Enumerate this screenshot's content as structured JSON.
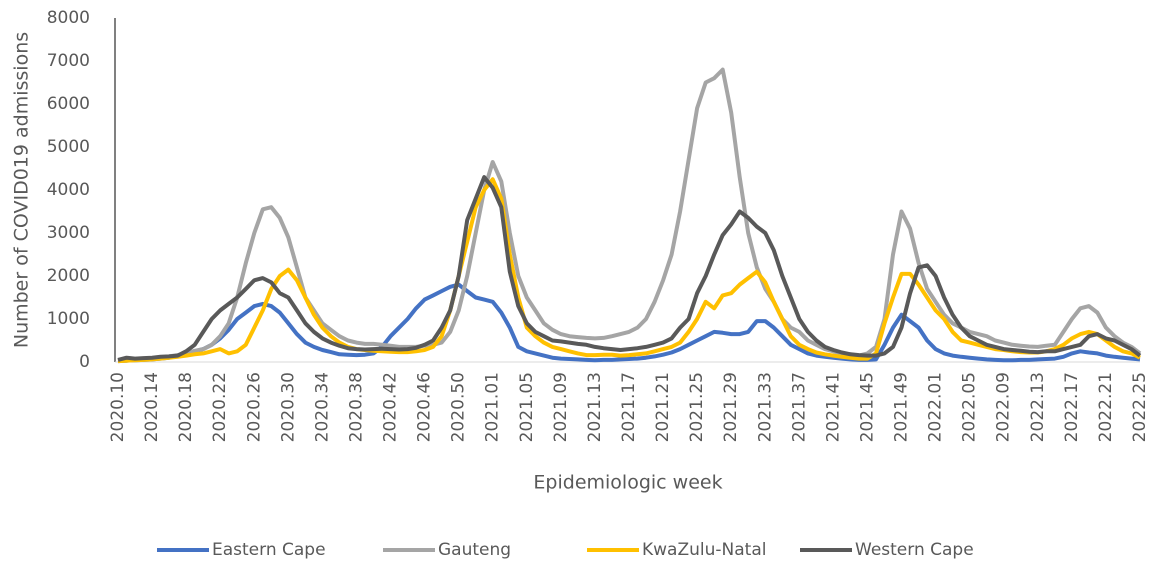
{
  "chart_data": {
    "type": "line",
    "y_label": "Number of COVID019 admissions",
    "x_label": "Epidemiologic week",
    "categories": [
      "2020.10",
      null,
      null,
      null,
      "2020.14",
      null,
      null,
      null,
      "2020.18",
      null,
      null,
      null,
      "2020.22",
      null,
      null,
      null,
      "2020.26",
      null,
      null,
      null,
      "2020.30",
      null,
      null,
      null,
      "2020.34",
      null,
      null,
      null,
      "2020.38",
      null,
      null,
      null,
      "2020.42",
      null,
      null,
      null,
      "2020.46",
      null,
      null,
      null,
      "2020.50",
      null,
      null,
      null,
      "2021.01",
      null,
      null,
      null,
      "2021.05",
      null,
      null,
      null,
      "2021.09",
      null,
      null,
      null,
      "2021.13",
      null,
      null,
      null,
      "2021.17",
      null,
      null,
      null,
      "2021.21",
      null,
      null,
      null,
      "2021.25",
      null,
      null,
      null,
      "2021.29",
      null,
      null,
      null,
      "2021.33",
      null,
      null,
      null,
      "2021.37",
      null,
      null,
      null,
      "2021.41",
      null,
      null,
      null,
      "2021.45",
      null,
      null,
      null,
      "2021.49",
      null,
      null,
      null,
      "2022.01",
      null,
      null,
      null,
      "2022.05",
      null,
      null,
      null,
      "2022.09",
      null,
      null,
      null,
      "2022.13",
      null,
      null,
      null,
      "2022.17",
      null,
      null,
      null,
      "2022.21",
      null,
      null,
      null,
      "2022.25"
    ],
    "series": [
      {
        "name": "Eastern Cape",
        "color": "#4472c4",
        "values": [
          20,
          30,
          40,
          50,
          60,
          80,
          100,
          150,
          200,
          250,
          300,
          400,
          550,
          750,
          1000,
          1150,
          1300,
          1350,
          1300,
          1150,
          900,
          650,
          450,
          350,
          280,
          230,
          180,
          170,
          160,
          170,
          200,
          350,
          600,
          800,
          1000,
          1250,
          1450,
          1550,
          1650,
          1750,
          1800,
          1650,
          1500,
          1450,
          1400,
          1150,
          800,
          350,
          250,
          200,
          150,
          100,
          80,
          70,
          60,
          50,
          40,
          50,
          50,
          60,
          70,
          80,
          100,
          130,
          170,
          220,
          300,
          400,
          500,
          600,
          700,
          680,
          650,
          650,
          700,
          950,
          950,
          800,
          600,
          400,
          300,
          200,
          150,
          120,
          100,
          80,
          60,
          50,
          50,
          60,
          400,
          800,
          1100,
          950,
          800,
          500,
          300,
          200,
          150,
          120,
          100,
          80,
          60,
          50,
          40,
          40,
          50,
          50,
          60,
          70,
          80,
          120,
          200,
          250,
          220,
          200,
          150,
          120,
          100,
          80,
          60
        ]
      },
      {
        "name": "Gauteng",
        "color": "#a5a5a5",
        "values": [
          30,
          50,
          40,
          60,
          80,
          100,
          130,
          160,
          200,
          260,
          300,
          400,
          600,
          900,
          1500,
          2300,
          3000,
          3550,
          3600,
          3350,
          2900,
          2200,
          1500,
          1200,
          900,
          750,
          600,
          500,
          450,
          420,
          420,
          400,
          380,
          350,
          350,
          350,
          380,
          400,
          450,
          700,
          1200,
          2000,
          3000,
          4000,
          4650,
          4200,
          3000,
          2000,
          1500,
          1200,
          900,
          750,
          650,
          600,
          580,
          560,
          550,
          560,
          600,
          650,
          700,
          800,
          1000,
          1400,
          1900,
          2500,
          3500,
          4700,
          5900,
          6500,
          6600,
          6800,
          5800,
          4300,
          3000,
          2200,
          1700,
          1400,
          1000,
          800,
          700,
          500,
          400,
          300,
          250,
          200,
          180,
          150,
          200,
          350,
          1000,
          2500,
          3500,
          3100,
          2300,
          1700,
          1400,
          1100,
          900,
          800,
          700,
          650,
          600,
          500,
          450,
          400,
          380,
          360,
          350,
          380,
          400,
          700,
          1000,
          1250,
          1300,
          1150,
          800,
          600,
          450,
          350,
          200
        ]
      },
      {
        "name": "KwaZulu-Natal",
        "color": "#ffc000",
        "values": [
          20,
          30,
          40,
          50,
          60,
          80,
          100,
          120,
          150,
          180,
          200,
          250,
          300,
          200,
          250,
          400,
          800,
          1200,
          1700,
          2000,
          2150,
          1900,
          1500,
          1100,
          800,
          600,
          450,
          350,
          300,
          280,
          260,
          250,
          240,
          230,
          230,
          250,
          280,
          350,
          600,
          1200,
          2000,
          2800,
          3600,
          4000,
          4250,
          3800,
          2500,
          1500,
          800,
          600,
          450,
          350,
          300,
          250,
          200,
          160,
          160,
          170,
          170,
          150,
          160,
          180,
          200,
          250,
          300,
          350,
          450,
          700,
          1000,
          1400,
          1250,
          1550,
          1600,
          1800,
          1950,
          2100,
          1850,
          1400,
          1000,
          600,
          400,
          300,
          220,
          180,
          150,
          120,
          100,
          80,
          80,
          200,
          900,
          1500,
          2050,
          2050,
          1800,
          1500,
          1200,
          1000,
          700,
          500,
          450,
          400,
          350,
          300,
          280,
          250,
          230,
          220,
          220,
          250,
          300,
          400,
          550,
          650,
          700,
          650,
          500,
          350,
          250,
          200,
          100
        ]
      },
      {
        "name": "Western Cape",
        "color": "#595959",
        "values": [
          50,
          100,
          80,
          90,
          100,
          120,
          130,
          150,
          250,
          400,
          700,
          1000,
          1200,
          1350,
          1500,
          1700,
          1900,
          1950,
          1850,
          1600,
          1500,
          1200,
          900,
          700,
          550,
          450,
          380,
          320,
          300,
          290,
          300,
          310,
          300,
          290,
          300,
          330,
          400,
          500,
          800,
          1200,
          2000,
          3300,
          3800,
          4300,
          4050,
          3600,
          2100,
          1300,
          900,
          700,
          600,
          500,
          480,
          450,
          420,
          400,
          350,
          320,
          300,
          280,
          300,
          320,
          350,
          400,
          450,
          550,
          800,
          1000,
          1600,
          2000,
          2500,
          2950,
          3200,
          3500,
          3350,
          3150,
          3000,
          2600,
          2000,
          1500,
          1000,
          700,
          500,
          350,
          280,
          220,
          180,
          160,
          150,
          150,
          200,
          350,
          800,
          1600,
          2200,
          2250,
          2000,
          1500,
          1100,
          800,
          600,
          500,
          400,
          350,
          300,
          280,
          260,
          240,
          230,
          250,
          250,
          300,
          350,
          400,
          600,
          650,
          550,
          500,
          400,
          300,
          150
        ]
      }
    ],
    "ylim": [
      0,
      8000
    ],
    "yticks": [
      0,
      1000,
      2000,
      3000,
      4000,
      5000,
      6000,
      7000,
      8000
    ],
    "grid": false,
    "legend": "bottom"
  }
}
